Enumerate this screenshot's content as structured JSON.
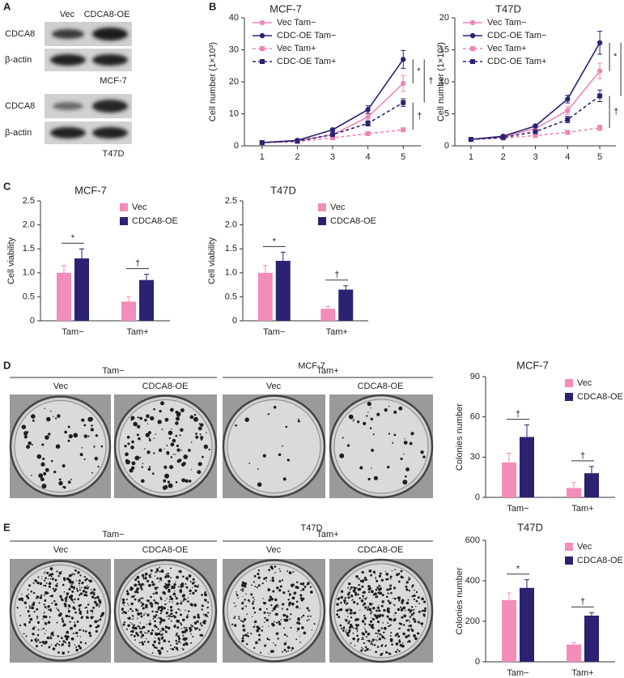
{
  "panel_labels": [
    "A",
    "B",
    "C",
    "D",
    "E"
  ],
  "blot": {
    "lanes": [
      "Vec",
      "CDCA8-OE"
    ],
    "rows": [
      "CDCA8",
      "β-actin",
      "CDCA8",
      "β-actin"
    ],
    "cell_lines": [
      "MCF-7",
      "T47D"
    ]
  },
  "colony_panels": [
    {
      "cell_line": "MCF-7",
      "conditions": [
        "Tam−",
        "Tam+"
      ],
      "lanes": [
        "Vec",
        "CDCA8-OE",
        "Vec",
        "CDCA8-OE"
      ]
    },
    {
      "cell_line": "T47D",
      "conditions": [
        "Tam−",
        "Tam+"
      ],
      "lanes": [
        "Vec",
        "CDCA8-OE",
        "Vec",
        "CDCA8-OE"
      ]
    }
  ],
  "chart_data": [
    {
      "type": "line",
      "title": "MCF-7",
      "ylabel": "Cell number (1×10³)",
      "x": [
        1,
        2,
        3,
        4,
        5
      ],
      "xlim": [
        0.5,
        5.5
      ],
      "xticks": [
        1,
        2,
        3,
        4,
        5
      ],
      "ylim": [
        0,
        40
      ],
      "yticks": [
        0,
        10,
        20,
        30,
        40
      ],
      "legend": "upper left",
      "series": [
        {
          "name": "Vec Tam−",
          "color": "#ee86b4",
          "linestyle": "solid",
          "marker": "circle",
          "values": [
            1,
            1.5,
            3.5,
            9,
            19.5
          ],
          "errors": [
            0,
            0.2,
            0.4,
            1.2,
            2.5
          ]
        },
        {
          "name": "CDC-OE Tam−",
          "color": "#2b2272",
          "linestyle": "solid",
          "marker": "circle",
          "values": [
            1,
            1.7,
            5,
            11.3,
            27
          ],
          "errors": [
            0,
            0.2,
            0.5,
            1.2,
            2.8
          ]
        },
        {
          "name": "Vec Tam+",
          "color": "#ee86b4",
          "linestyle": "dashed",
          "marker": "square",
          "values": [
            1,
            1.3,
            2.5,
            3.8,
            5
          ],
          "errors": [
            0,
            0.1,
            0.2,
            0.4,
            0.6
          ]
        },
        {
          "name": "CDC-OE Tam+",
          "color": "#2b2272",
          "linestyle": "dashed",
          "marker": "square",
          "values": [
            1,
            1.5,
            3.5,
            7,
            13.5
          ],
          "errors": [
            0,
            0.2,
            0.4,
            0.8,
            1.2
          ]
        }
      ],
      "annotations": [
        "*",
        "†",
        "†"
      ]
    },
    {
      "type": "line",
      "title": "T47D",
      "ylabel": "Cell number (1×10³)",
      "x": [
        1,
        2,
        3,
        4,
        5
      ],
      "xlim": [
        0.5,
        5.5
      ],
      "xticks": [
        1,
        2,
        3,
        4,
        5
      ],
      "ylim": [
        0,
        20
      ],
      "yticks": [
        0,
        5,
        10,
        15,
        20
      ],
      "legend": "upper left",
      "series": [
        {
          "name": "Vec Tam−",
          "color": "#ee86b4",
          "linestyle": "solid",
          "marker": "circle",
          "values": [
            1,
            1.4,
            2.7,
            5.5,
            11.7
          ],
          "errors": [
            0,
            0.1,
            0.2,
            0.6,
            1.2
          ]
        },
        {
          "name": "CDC-OE Tam−",
          "color": "#2b2272",
          "linestyle": "solid",
          "marker": "circle",
          "values": [
            1,
            1.5,
            3.1,
            7.3,
            16.1
          ],
          "errors": [
            0,
            0.1,
            0.2,
            0.6,
            1.8
          ]
        },
        {
          "name": "Vec Tam+",
          "color": "#ee86b4",
          "linestyle": "dashed",
          "marker": "square",
          "values": [
            1,
            1.2,
            1.6,
            2.1,
            2.8
          ],
          "errors": [
            0,
            0.1,
            0.1,
            0.3,
            0.4
          ]
        },
        {
          "name": "CDC-OE Tam+",
          "color": "#2b2272",
          "linestyle": "dashed",
          "marker": "square",
          "values": [
            1,
            1.3,
            2.2,
            4.1,
            7.8
          ],
          "errors": [
            0,
            0.1,
            0.2,
            0.5,
            0.9
          ]
        }
      ],
      "annotations": [
        "*",
        "†",
        "†"
      ]
    },
    {
      "type": "bar",
      "title": "MCF-7",
      "ylabel": "Cell viability",
      "categories": [
        "Tam−",
        "Tam+"
      ],
      "ylim": [
        0,
        2.5
      ],
      "yticks": [
        0,
        0.5,
        {
          "value": 1,
          "label": "1.0"
        },
        1.5,
        {
          "value": 2,
          "label": "2.0"
        },
        2.5
      ],
      "legend": "upper right",
      "series": [
        {
          "name": "Vec",
          "color": "#f28cb8",
          "values": [
            1.0,
            0.4
          ],
          "errors": [
            0.15,
            0.1
          ]
        },
        {
          "name": "CDCA8-OE",
          "color": "#2b2272",
          "values": [
            1.3,
            0.85
          ],
          "errors": [
            0.2,
            0.12
          ]
        }
      ],
      "annotations": [
        "*",
        "†"
      ]
    },
    {
      "type": "bar",
      "title": "T47D",
      "ylabel": "Cell viability",
      "categories": [
        "Tam−",
        "Tam+"
      ],
      "ylim": [
        0,
        2.5
      ],
      "yticks": [
        0,
        0.5,
        {
          "value": 1,
          "label": "1.0"
        },
        1.5,
        {
          "value": 2,
          "label": "2.0"
        },
        2.5
      ],
      "legend": "upper right",
      "series": [
        {
          "name": "Vec",
          "color": "#f28cb8",
          "values": [
            1.0,
            0.25
          ],
          "errors": [
            0.15,
            0.05
          ]
        },
        {
          "name": "CDCA8-OE",
          "color": "#2b2272",
          "values": [
            1.25,
            0.65
          ],
          "errors": [
            0.18,
            0.08
          ]
        }
      ],
      "annotations": [
        "*",
        "†"
      ]
    },
    {
      "type": "bar",
      "title": "MCF-7",
      "ylabel": "Colonies number",
      "categories": [
        "Tam−",
        "Tam+"
      ],
      "ylim": [
        0,
        90
      ],
      "yticks": [
        0,
        30,
        60,
        90
      ],
      "legend": "upper right",
      "series": [
        {
          "name": "Vec",
          "color": "#f28cb8",
          "values": [
            26,
            7
          ],
          "errors": [
            7,
            4
          ]
        },
        {
          "name": "CDCA8-OE",
          "color": "#2b2272",
          "values": [
            45,
            18
          ],
          "errors": [
            9,
            5
          ]
        }
      ],
      "annotations": [
        "†",
        "†"
      ]
    },
    {
      "type": "bar",
      "title": "T47D",
      "ylabel": "Colonies number",
      "categories": [
        "Tam−",
        "Tam+"
      ],
      "ylim": [
        0,
        600
      ],
      "yticks": [
        0,
        200,
        400,
        600
      ],
      "legend": "upper right",
      "series": [
        {
          "name": "Vec",
          "color": "#f28cb8",
          "values": [
            305,
            85
          ],
          "errors": [
            35,
            10
          ]
        },
        {
          "name": "CDCA8-OE",
          "color": "#2b2272",
          "values": [
            365,
            228
          ],
          "errors": [
            40,
            15
          ]
        }
      ],
      "annotations": [
        "*",
        "†"
      ]
    }
  ]
}
